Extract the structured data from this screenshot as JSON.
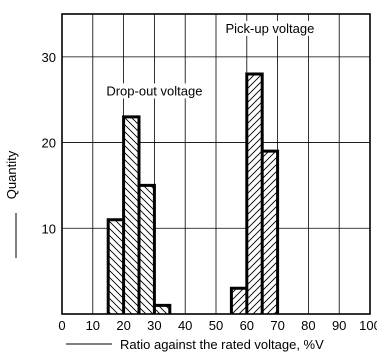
{
  "chart_data": {
    "type": "histogram",
    "x_ticks": [
      0,
      10,
      20,
      30,
      40,
      50,
      60,
      70,
      80,
      90,
      100
    ],
    "y_ticks": [
      10,
      20,
      30
    ],
    "xlim": [
      0,
      100
    ],
    "ylim": [
      0,
      35
    ],
    "grid": true,
    "xlabel": "Ratio against the rated voltage, %V",
    "ylabel": "Quantity",
    "series": [
      {
        "name": "Drop-out voltage",
        "hatch": "backslash",
        "bins": [
          {
            "x0": 15,
            "x1": 20,
            "value": 11
          },
          {
            "x0": 20,
            "x1": 25,
            "value": 23
          },
          {
            "x0": 25,
            "x1": 30,
            "value": 15
          },
          {
            "x0": 30,
            "x1": 35,
            "value": 1
          }
        ]
      },
      {
        "name": "Pick-up voltage",
        "hatch": "forward-slash",
        "bins": [
          {
            "x0": 55,
            "x1": 60,
            "value": 3
          },
          {
            "x0": 60,
            "x1": 65,
            "value": 28
          },
          {
            "x0": 65,
            "x1": 70,
            "value": 19
          }
        ]
      }
    ],
    "annotations": [
      {
        "text": "Drop-out voltage",
        "x": 30,
        "y": 25.5
      },
      {
        "text": "Pick-up voltage",
        "x": 67.5,
        "y": 32.8
      }
    ]
  }
}
